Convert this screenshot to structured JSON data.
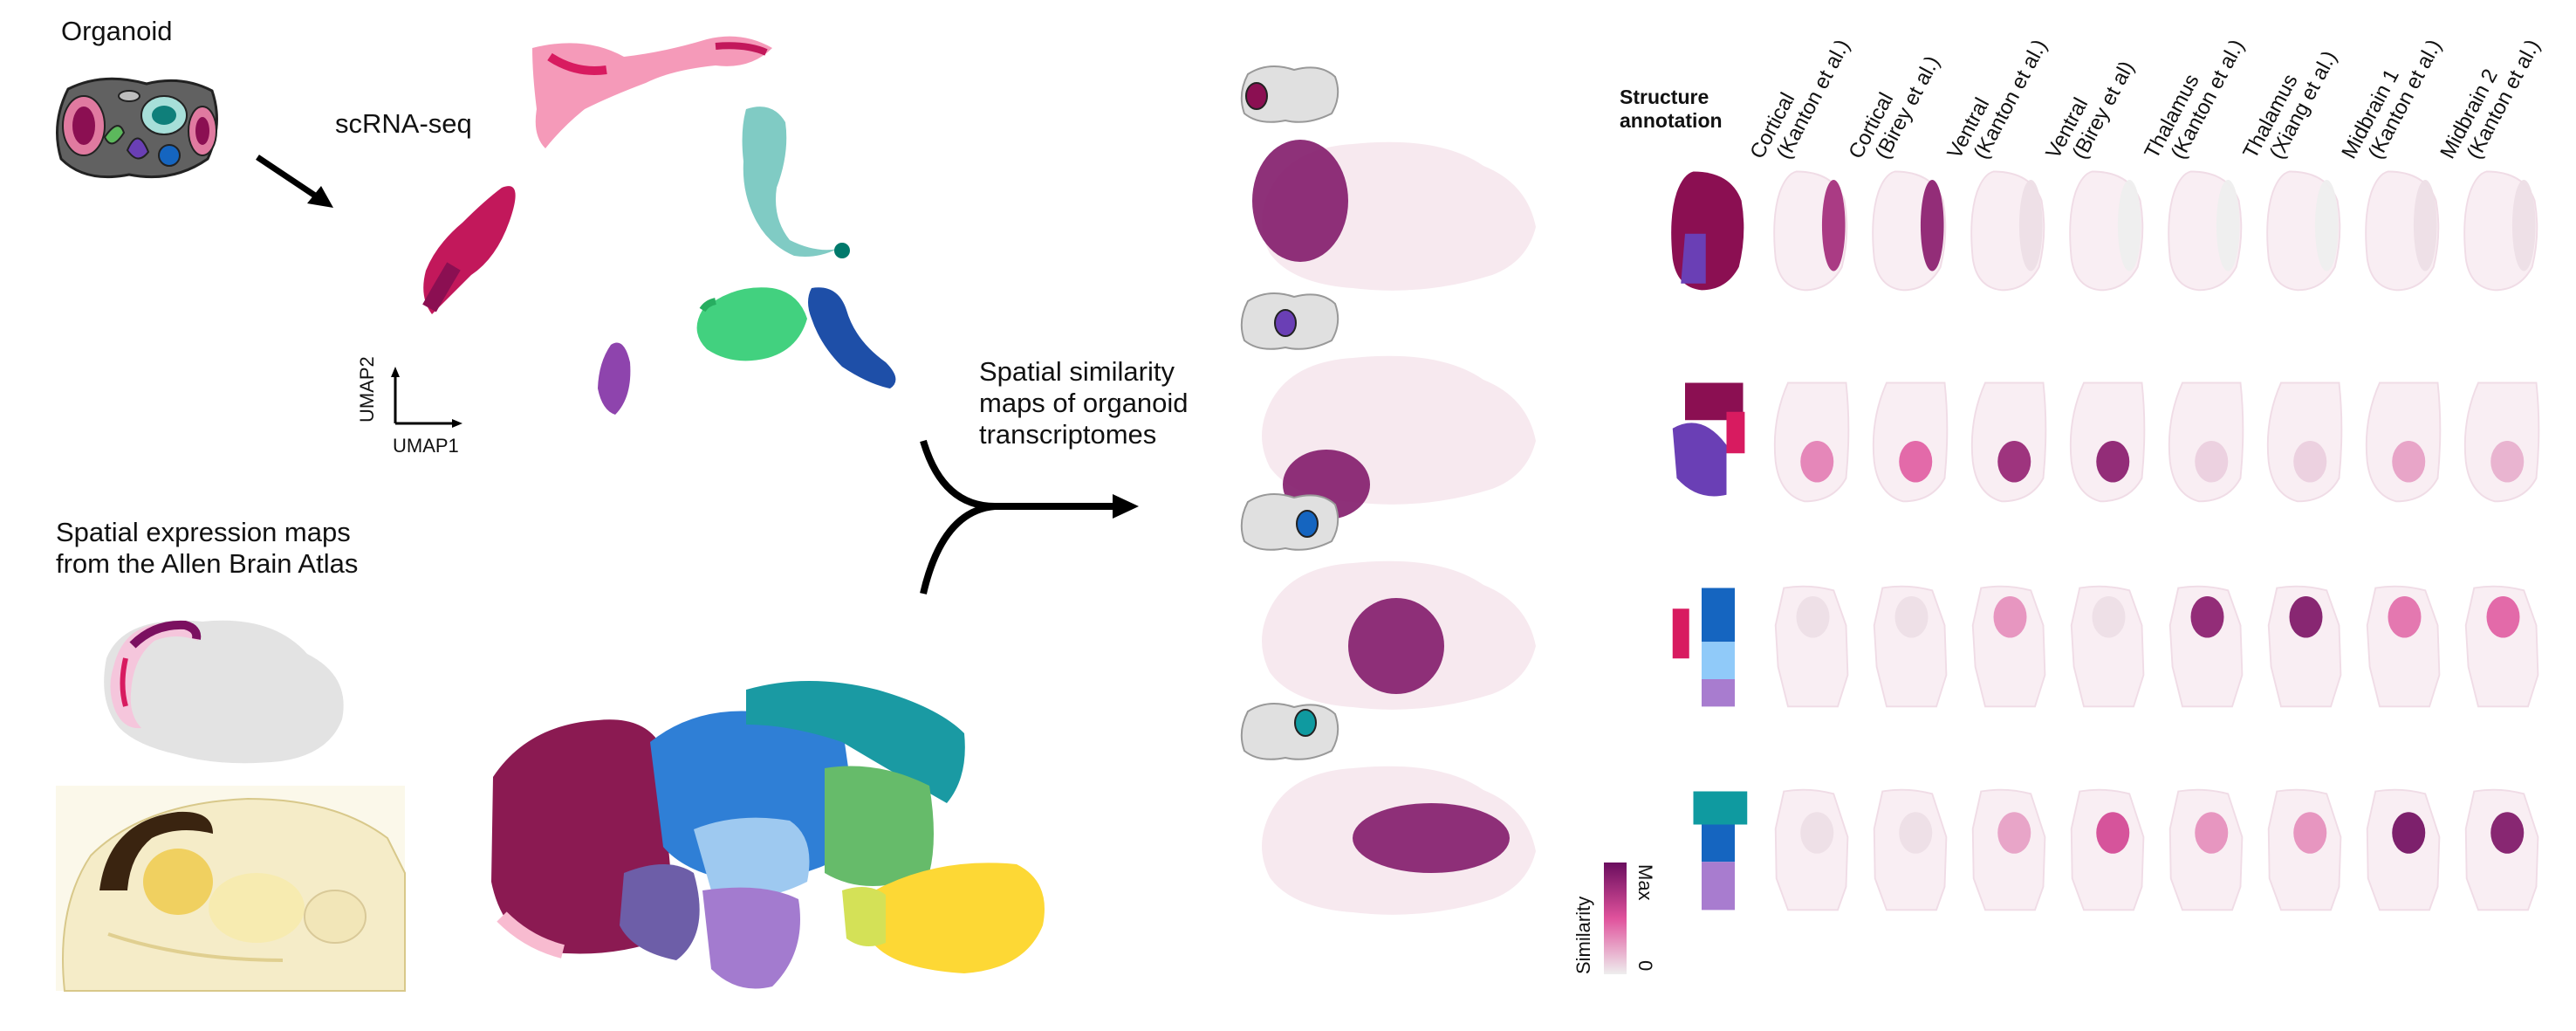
{
  "labels": {
    "organoid": "Organoid",
    "scrnaseq": "scRNA-seq",
    "umap1": "UMAP1",
    "umap2": "UMAP2",
    "spatial_expr_line1": "Spatial expression maps",
    "spatial_expr_line2": "from the Allen Brain Atlas",
    "similarity_line1": "Spatial similarity",
    "similarity_line2": "maps of organoid",
    "similarity_line3": "transcriptomes",
    "structure_annotation_line1": "Structure",
    "structure_annotation_line2": "annotation",
    "legend_title": "Similarity",
    "legend_max": "Max",
    "legend_min": "0"
  },
  "columns": [
    {
      "line1": "Cortical",
      "line2": "(Kanton et al.)"
    },
    {
      "line1": "Cortical",
      "line2": "(Birey et al.)"
    },
    {
      "line1": "Ventral",
      "line2": "(Kanton et al.)"
    },
    {
      "line1": "Ventral",
      "line2": "(Birey et al)"
    },
    {
      "line1": "Thalamus",
      "line2": "(Kanton et al.)"
    },
    {
      "line1": "Thalamus",
      "line2": "(Xiang et al.)"
    },
    {
      "line1": "Midbrain 1",
      "line2": "(Kanton et al.)"
    },
    {
      "line1": "Midbrain 2",
      "line2": "(Kanton et al.)"
    }
  ],
  "similarity_grid": [
    [
      0.75,
      0.85,
      0.05,
      0.0,
      0.0,
      0.0,
      0.05,
      0.05
    ],
    [
      0.35,
      0.45,
      0.8,
      0.85,
      0.1,
      0.1,
      0.25,
      0.2
    ],
    [
      0.05,
      0.05,
      0.3,
      0.05,
      0.85,
      0.9,
      0.4,
      0.45
    ],
    [
      0.05,
      0.05,
      0.25,
      0.55,
      0.3,
      0.3,
      0.95,
      0.9
    ]
  ],
  "colors": {
    "cortical": "#8b0f52",
    "cortical_light": "#d81b60",
    "ventral": "#6a3fb5",
    "ventral_light": "#a87ccf",
    "thalamus": "#1565c0",
    "thalamus_light": "#90caf9",
    "midbrain": "#0f9aa0",
    "midbrain_green": "#5cb85c",
    "yellow": "#fdd835",
    "sim_max": "#6a0d5e",
    "sim_mid": "#e0529c",
    "sim_low": "#f7e4ee",
    "sim_zero": "#eeeeee",
    "grey_brain": "#e3e3e3"
  }
}
